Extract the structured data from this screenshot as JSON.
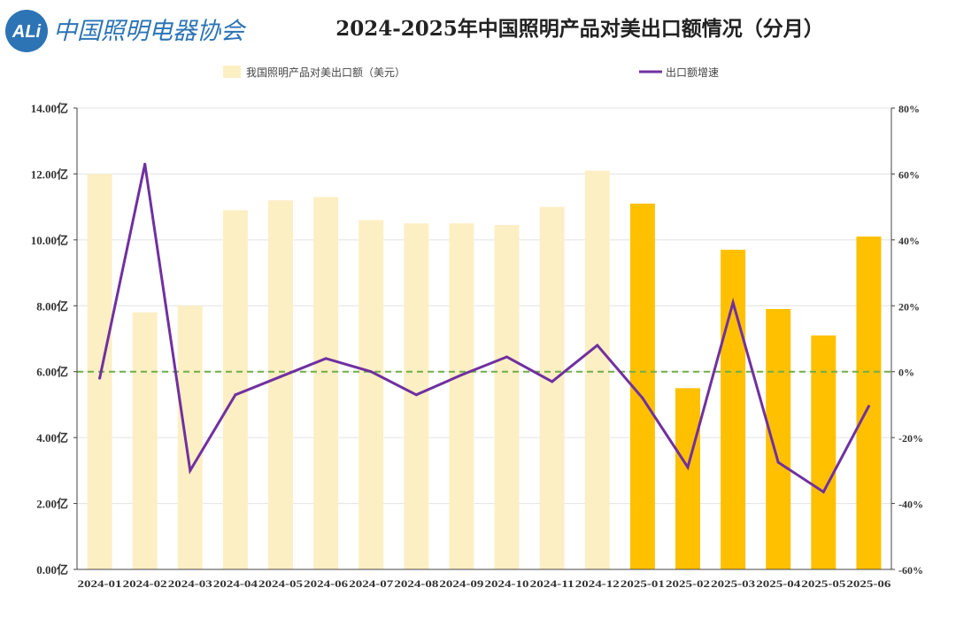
{
  "logo": {
    "mark": "ALi",
    "org_name": "中国照明电器协会"
  },
  "chart_data": {
    "type": "bar",
    "title": "2024-2025年中国照明产品对美出口额情况（分月）",
    "categories": [
      "2024-01",
      "2024-02",
      "2024-03",
      "2024-04",
      "2024-05",
      "2024-06",
      "2024-07",
      "2024-08",
      "2024-09",
      "2024-10",
      "2024-11",
      "2024-12",
      "2025-01",
      "2025-02",
      "2025-03",
      "2025-04",
      "2025-05",
      "2025-06"
    ],
    "series": [
      {
        "name": "我国照明产品对美出口额（美元）",
        "type": "bar",
        "axis": "left",
        "values": [
          12.0,
          7.8,
          8.0,
          10.9,
          11.2,
          11.3,
          10.6,
          10.5,
          10.5,
          10.45,
          11.0,
          12.1,
          11.1,
          5.5,
          9.7,
          7.9,
          7.1,
          10.1
        ],
        "color_2024": "#fdefc4",
        "color_2025": "#ffc000"
      },
      {
        "name": "出口额增速",
        "type": "line",
        "axis": "right",
        "values": [
          -2,
          63,
          -30,
          -7,
          -1.5,
          4,
          0,
          -7,
          -1,
          4.5,
          -3,
          8,
          -8,
          -29,
          21,
          -27.5,
          -36.5,
          -10.5
        ],
        "color": "#7030a0"
      }
    ],
    "y_left": {
      "min": 0,
      "max": 14,
      "ticks": [
        "0.00亿",
        "2.00亿",
        "4.00亿",
        "6.00亿",
        "8.00亿",
        "10.00亿",
        "12.00亿",
        "14.00亿"
      ]
    },
    "y_right": {
      "min": -60,
      "max": 80,
      "ticks": [
        "-60%",
        "-40%",
        "-20%",
        "0%",
        "20%",
        "40%",
        "60%",
        "80%"
      ]
    },
    "reference_line": {
      "axis": "right",
      "value": 0,
      "color": "#70ad47",
      "style": "dashed"
    },
    "grid": true,
    "legend_position": "top"
  }
}
